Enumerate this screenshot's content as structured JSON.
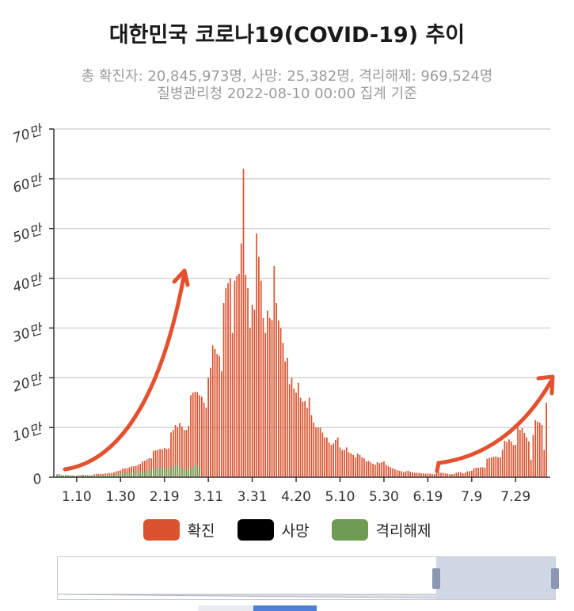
{
  "title": "대한민국 코로나19(COVID-19) 추이",
  "subtitle_line1": "총 확진자: 20,845,973명, 사망: 25,382명, 격리해제: 969,524명",
  "subtitle_line2": "질병관리청 2022-08-10 00:00 집계 기준",
  "colors": {
    "confirmed": "#d9532f",
    "deaths": "#000000",
    "released": "#6f9a52",
    "arrow": "#e3512e",
    "grid": "#cccccc"
  },
  "chart_data": {
    "type": "bar",
    "y_ticks": [
      "0",
      "10만",
      "20만",
      "30만",
      "40만",
      "50만",
      "60만",
      "70만"
    ],
    "ylim": [
      0,
      700000
    ],
    "x_tick_labels": [
      "1.10",
      "1.30",
      "2.19",
      "3.11",
      "3.31",
      "4.20",
      "5.10",
      "5.30",
      "6.19",
      "7.9",
      "7.29"
    ],
    "legend": [
      "확진",
      "사망",
      "격리해제"
    ],
    "legend_position": "bottom",
    "grid": true,
    "start_date": "1.1",
    "series": [
      {
        "name": "확진",
        "values": [
          4400,
          4100,
          3100,
          4000,
          4400,
          4100,
          3500,
          3400,
          3200,
          3000,
          4000,
          4300,
          4500,
          4300,
          4200,
          4000,
          3900,
          5800,
          6600,
          7000,
          7000,
          6400,
          7600,
          7500,
          8500,
          8600,
          9600,
          11800,
          13000,
          14000,
          17500,
          17500,
          18000,
          20000,
          22000,
          22000,
          23000,
          25000,
          27000,
          32000,
          33000,
          36000,
          38000,
          38000,
          53000,
          54000,
          55000,
          57000,
          56000,
          59000,
          57000,
          58000,
          90000,
          95000,
          105000,
          100000,
          109000,
          102000,
          95000,
          95000,
          103000,
          165000,
          170000,
          172000,
          171000,
          165000,
          162000,
          150000,
          140000,
          200000,
          220000,
          265000,
          258000,
          248000,
          244000,
          213000,
          350000,
          380000,
          390000,
          400000,
          290000,
          395000,
          405000,
          409000,
          470000,
          620000,
          407000,
          380000,
          300000,
          347000,
          337000,
          490000,
          443000,
          395000,
          320000,
          290000,
          335000,
          320000,
          316000,
          425000,
          350000,
          315000,
          300000,
          270000,
          233000,
          240000,
          187000,
          200000,
          178000,
          170000,
          190000,
          160000,
          152000,
          153000,
          140000,
          160000,
          125000,
          110000,
          100000,
          100000,
          100000,
          90000,
          80000,
          80000,
          70000,
          65000,
          68000,
          75000,
          80000,
          60000,
          55000,
          55000,
          60000,
          50000,
          48000,
          45000,
          40000,
          48000,
          45000,
          40000,
          38000,
          32000,
          33000,
          30000,
          27000,
          25000,
          30000,
          28000,
          30000,
          32000,
          25000,
          22000,
          20000,
          18000,
          16000,
          14000,
          13000,
          12000,
          10000,
          12000,
          13000,
          11000,
          10000,
          9000,
          9000,
          9000,
          8000,
          8000,
          7000,
          7500,
          7000,
          6500,
          6000,
          9000,
          10000,
          9000,
          9000,
          8000,
          7000,
          6000,
          6000,
          7000,
          9000,
          11000,
          10000,
          8000,
          9000,
          12000,
          12000,
          13000,
          18000,
          19000,
          19000,
          20000,
          20000,
          19000,
          37000,
          39000,
          40000,
          41000,
          42000,
          40000,
          40000,
          55000,
          73000,
          71000,
          76000,
          72000,
          65000,
          65000,
          100000,
          95000,
          99000,
          89000,
          80000,
          72000,
          35000,
          85000,
          115000,
          112000,
          110000,
          105000,
          55000,
          150000
        ]
      },
      {
        "name": "격리해제",
        "values": [
          5500,
          6500,
          4500,
          4000,
          4200,
          4000,
          3600,
          3300,
          3200,
          3000,
          2800,
          3000,
          3200,
          3500,
          3600,
          3400,
          3300,
          3600,
          3800,
          3600,
          3800,
          3600,
          4200,
          4500,
          4600,
          4800,
          5000,
          5800,
          6600,
          6800,
          7500,
          7700,
          8000,
          8800,
          9500,
          9500,
          10000,
          10800,
          11000,
          12000,
          12500,
          13000,
          15000,
          15000,
          17500,
          18000,
          20000,
          20000,
          18000,
          17500,
          18000,
          18500,
          20000,
          22000,
          25000,
          24000,
          22000,
          18500,
          15000,
          15000,
          16000,
          19000,
          20000,
          30000,
          21000,
          21000
        ]
      },
      {
        "name": "사망",
        "values": []
      }
    ]
  },
  "annotations": {
    "arrows": [
      "rising-arrow-left",
      "rising-arrow-right"
    ]
  },
  "data_zoom": {
    "selected_range": "recent"
  }
}
